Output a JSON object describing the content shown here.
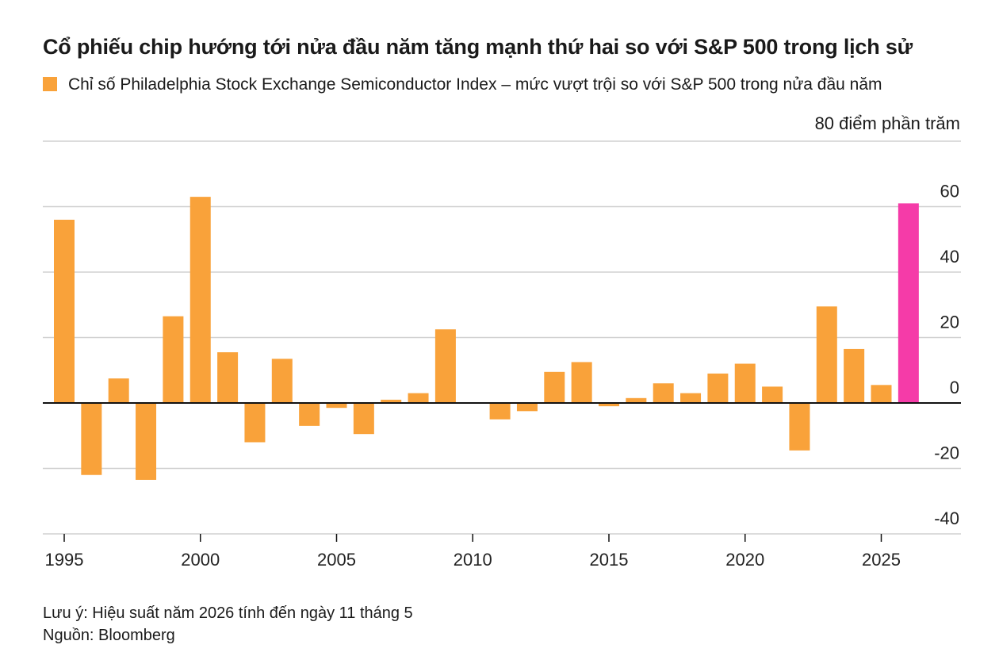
{
  "colors": {
    "bar": "#f9a23a",
    "highlight": "#f53ba8",
    "grid": "#d0d0d0",
    "axis": "#111111"
  },
  "chart_data": {
    "type": "bar",
    "title": "Cổ phiếu chip hướng tới nửa đầu năm tăng mạnh thứ hai so với S&P 500 trong lịch sử",
    "legend": "Chỉ số Philadelphia Stock Exchange Semiconductor Index – mức vượt trội so với S&P 500 trong nửa đầu năm",
    "unit_label": "80 điểm phần trăm",
    "note": "Lưu ý: Hiệu suất năm 2026 tính đến ngày 11 tháng 5",
    "source": "Nguồn: Bloomberg",
    "grid": true,
    "ylim": [
      -40,
      80
    ],
    "y_ticks": [
      60,
      40,
      20,
      0,
      -20,
      -40
    ],
    "y_tick_labels": [
      "60",
      "40",
      "20",
      "0",
      "-20",
      "-40"
    ],
    "x_ticks": [
      1995,
      2000,
      2005,
      2010,
      2015,
      2020,
      2025
    ],
    "x_tick_labels": [
      "1995",
      "2000",
      "2005",
      "2010",
      "2015",
      "2020",
      "2025"
    ],
    "categories": [
      1995,
      1996,
      1997,
      1998,
      1999,
      2000,
      2001,
      2002,
      2003,
      2004,
      2005,
      2006,
      2007,
      2008,
      2009,
      2010,
      2011,
      2012,
      2013,
      2014,
      2015,
      2016,
      2017,
      2018,
      2019,
      2020,
      2021,
      2022,
      2023,
      2024,
      2025,
      2026
    ],
    "values": [
      56,
      -22,
      7.5,
      -23.5,
      26.5,
      63,
      15.5,
      -12,
      13.5,
      -7,
      -1.5,
      -9.5,
      1,
      3,
      22.5,
      0,
      -5,
      -2.5,
      9.5,
      12.5,
      -1,
      1.5,
      6,
      3,
      9,
      12,
      5,
      -14.5,
      29.5,
      16.5,
      5.5,
      61
    ],
    "highlight_category": 2026
  }
}
